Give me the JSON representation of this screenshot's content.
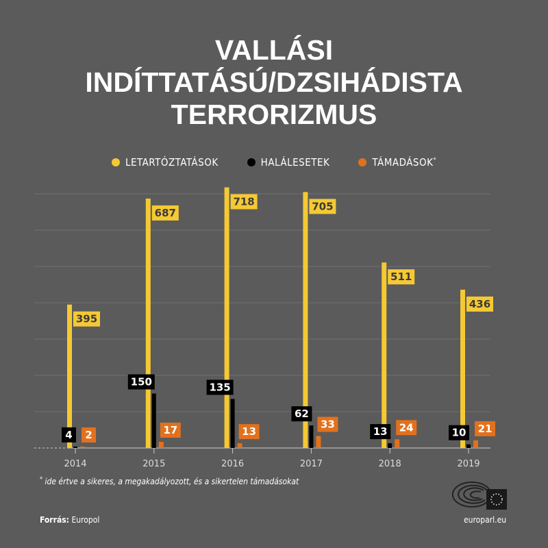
{
  "title_lines": [
    "VALLÁSI",
    "INDÍTTATÁSÚ/DZSIHÁDISTA",
    "TERRORIZMUS"
  ],
  "chart_data": {
    "type": "bar",
    "categories": [
      "2014",
      "2015",
      "2016",
      "2017",
      "2018",
      "2019"
    ],
    "series": [
      {
        "name": "LETARTÓZTATÁSOK",
        "color": "#f5c933",
        "values": [
          395,
          687,
          718,
          705,
          511,
          436
        ]
      },
      {
        "name": "HALÁLESETEK",
        "color": "#000000",
        "values": [
          4,
          150,
          135,
          62,
          13,
          10
        ]
      },
      {
        "name": "TÁMADÁSOK",
        "name_suffix": "*",
        "color": "#e2711d",
        "values": [
          2,
          17,
          13,
          33,
          24,
          21
        ]
      }
    ],
    "ylim": [
      0,
      700
    ],
    "grid": true,
    "legend": "top"
  },
  "footnote": {
    "mark": "*",
    "text": "ide értve a sikeres, a megakadályozott, és a sikertelen támadásokat"
  },
  "source": {
    "label": "Forrás:",
    "value": "Europol"
  },
  "site": "europarl.eu"
}
